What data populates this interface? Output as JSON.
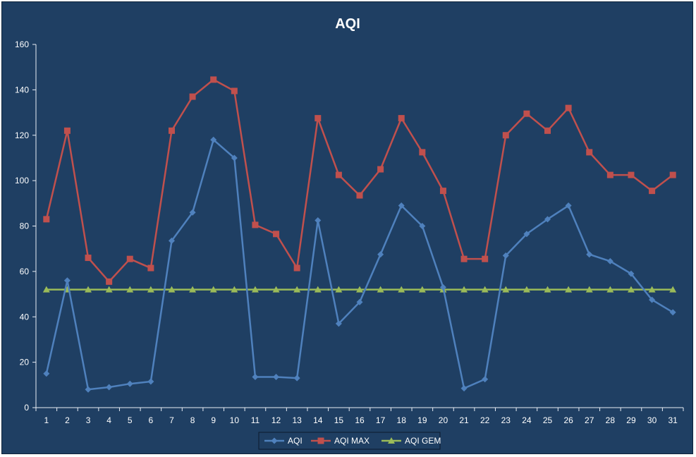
{
  "chart_data": {
    "type": "line",
    "title": "AQI",
    "xlabel": "",
    "ylabel": "",
    "ylim": [
      0,
      160
    ],
    "yticks": [
      0,
      20,
      40,
      60,
      80,
      100,
      120,
      140,
      160
    ],
    "grid": false,
    "legend_position": "bottom",
    "categories": [
      "1",
      "2",
      "3",
      "4",
      "5",
      "6",
      "7",
      "8",
      "9",
      "10",
      "11",
      "12",
      "13",
      "14",
      "15",
      "16",
      "17",
      "18",
      "19",
      "20",
      "21",
      "22",
      "23",
      "24",
      "25",
      "26",
      "27",
      "28",
      "29",
      "30",
      "31"
    ],
    "series": [
      {
        "name": "AQI",
        "color": "#4f81bd",
        "marker": "diamond",
        "values": [
          15,
          56,
          8,
          9,
          10.5,
          11.5,
          73.5,
          86,
          118,
          110,
          13.5,
          13.5,
          13,
          82.5,
          37,
          46.5,
          67.5,
          89,
          80,
          53,
          8.5,
          12.5,
          67,
          76.5,
          83,
          89,
          67.5,
          64.5,
          59,
          47.5,
          42
        ]
      },
      {
        "name": "AQI MAX",
        "color": "#c0504d",
        "marker": "square",
        "values": [
          83,
          122,
          66,
          55.5,
          65.5,
          61.5,
          122,
          137,
          144.5,
          139.5,
          80.5,
          76.5,
          61.5,
          127.5,
          102.5,
          93.5,
          105,
          127.5,
          112.5,
          95.5,
          65.5,
          65.5,
          120,
          129.5,
          122,
          132,
          112.5,
          102.5,
          102.5,
          95.5,
          102.5
        ]
      },
      {
        "name": "AQI GEM",
        "color": "#9bbb59",
        "marker": "triangle",
        "values": [
          52,
          52,
          52,
          52,
          52,
          52,
          52,
          52,
          52,
          52,
          52,
          52,
          52,
          52,
          52,
          52,
          52,
          52,
          52,
          52,
          52,
          52,
          52,
          52,
          52,
          52,
          52,
          52,
          52,
          52,
          52
        ]
      }
    ]
  }
}
